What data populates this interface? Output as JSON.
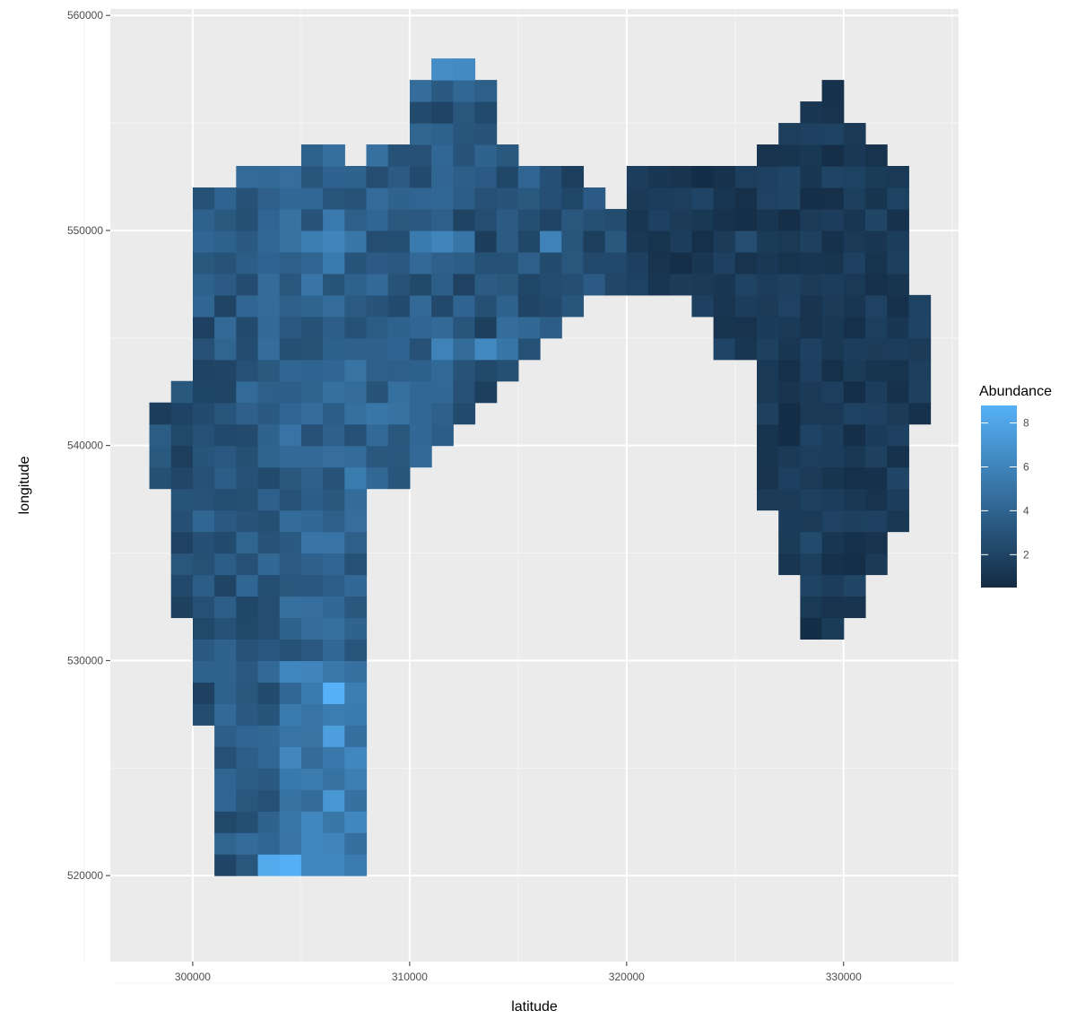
{
  "chart_data": {
    "type": "heatmap",
    "title": "",
    "xlabel": "latitude",
    "ylabel": "longitude",
    "xlim": [
      296200,
      335300
    ],
    "ylim": [
      516000,
      560300
    ],
    "x_ticks": [
      300000,
      310000,
      320000,
      330000
    ],
    "y_ticks": [
      520000,
      530000,
      540000,
      550000,
      560000
    ],
    "x_tick_labels": [
      "300000",
      "310000",
      "320000",
      "330000"
    ],
    "y_tick_labels": [
      "520000",
      "530000",
      "540000",
      "550000",
      "560000"
    ],
    "grid": true,
    "background": "#ebebeb",
    "legend": {
      "title": "Abundance",
      "position": "right",
      "range": [
        0.5,
        8.8
      ],
      "ticks": [
        2,
        4,
        6,
        8
      ],
      "tick_labels": [
        "2",
        "4",
        "6",
        "8"
      ],
      "low_color": "#132b43",
      "high_color": "#56b1f7"
    },
    "tile_size": 1000,
    "tiles": [
      {
        "x": 299000,
        "y": 538000,
        "value": 2.2
      },
      {
        "x": 300000,
        "y": 538000,
        "value": 2.8
      },
      {
        "x": 301000,
        "y": 538000,
        "value": 3.6
      },
      {
        "x": 302000,
        "y": 538000,
        "value": 2.9
      },
      {
        "x": 303000,
        "y": 538000,
        "value": 2.4
      },
      {
        "x": 304000,
        "y": 538000,
        "value": 3.2
      },
      {
        "x": 305000,
        "y": 538000,
        "value": 3.8
      },
      {
        "x": 306000,
        "y": 538000,
        "value": 3.0
      },
      {
        "x": 307000,
        "y": 538000,
        "value": 5.5
      },
      {
        "x": 308000,
        "y": 538000,
        "value": 4.2
      },
      {
        "x": 309000,
        "y": 538000,
        "value": 3.1
      },
      {
        "x": 298000,
        "y": 541000,
        "value": 1.6
      },
      {
        "x": 299000,
        "y": 541000,
        "value": 2.0
      },
      {
        "x": 300000,
        "y": 541000,
        "value": 2.5
      },
      {
        "x": 301000,
        "y": 541000,
        "value": 3.1
      },
      {
        "x": 302000,
        "y": 541000,
        "value": 3.8
      },
      {
        "x": 303000,
        "y": 541000,
        "value": 3.4
      },
      {
        "x": 304000,
        "y": 541000,
        "value": 4.1
      },
      {
        "x": 305000,
        "y": 541000,
        "value": 4.6
      },
      {
        "x": 306000,
        "y": 541000,
        "value": 3.6
      },
      {
        "x": 307000,
        "y": 541000,
        "value": 4.8
      },
      {
        "x": 308000,
        "y": 541000,
        "value": 5.2
      },
      {
        "x": 309000,
        "y": 541000,
        "value": 4.9
      },
      {
        "x": 310000,
        "y": 541000,
        "value": 4.2
      },
      {
        "x": 311000,
        "y": 541000,
        "value": 3.8
      },
      {
        "x": 311000,
        "y": 544000,
        "value": 5.9
      },
      {
        "x": 312000,
        "y": 544000,
        "value": 4.4
      },
      {
        "x": 313000,
        "y": 544000,
        "value": 6.3
      },
      {
        "x": 314000,
        "y": 544000,
        "value": 5.1
      },
      {
        "x": 302000,
        "y": 549000,
        "value": 3.4
      },
      {
        "x": 303000,
        "y": 549000,
        "value": 4.2
      },
      {
        "x": 304000,
        "y": 549000,
        "value": 4.9
      },
      {
        "x": 305000,
        "y": 549000,
        "value": 5.6
      },
      {
        "x": 306000,
        "y": 549000,
        "value": 6.1
      },
      {
        "x": 307000,
        "y": 549000,
        "value": 5.2
      },
      {
        "x": 310000,
        "y": 549000,
        "value": 5.4
      },
      {
        "x": 311000,
        "y": 549000,
        "value": 6.0
      },
      {
        "x": 312000,
        "y": 549000,
        "value": 5.1
      },
      {
        "x": 316000,
        "y": 549000,
        "value": 5.9
      },
      {
        "x": 310000,
        "y": 557000,
        "value": 6.8
      },
      {
        "x": 311000,
        "y": 557000,
        "value": 6.6
      },
      {
        "x": 312000,
        "y": 557000,
        "value": 6.4
      },
      {
        "x": 305000,
        "y": 528000,
        "value": 5.4
      },
      {
        "x": 306000,
        "y": 528000,
        "value": 8.8
      },
      {
        "x": 306000,
        "y": 526000,
        "value": 7.6
      },
      {
        "x": 306000,
        "y": 523000,
        "value": 7.1
      },
      {
        "x": 304000,
        "y": 520000,
        "value": 8.7
      },
      {
        "x": 303000,
        "y": 520000,
        "value": 8.4
      },
      {
        "x": 320000,
        "y": 551000,
        "value": 1.4
      },
      {
        "x": 321000,
        "y": 551000,
        "value": 1.6
      },
      {
        "x": 325000,
        "y": 549000,
        "value": 2.6
      },
      {
        "x": 328000,
        "y": 545000,
        "value": 1.0
      },
      {
        "x": 330000,
        "y": 545000,
        "value": 0.8
      },
      {
        "x": 332000,
        "y": 542000,
        "value": 0.9
      },
      {
        "x": 328000,
        "y": 540000,
        "value": 2.0
      },
      {
        "x": 329000,
        "y": 538000,
        "value": 1.1
      },
      {
        "x": 328000,
        "y": 535000,
        "value": 2.4
      },
      {
        "x": 329000,
        "y": 533000,
        "value": 1.6
      },
      {
        "x": 328000,
        "y": 531000,
        "value": 0.7
      }
    ],
    "region": {
      "left_columns": [
        {
          "x": 298000,
          "ymin": 538000,
          "ymax": 541000
        },
        {
          "x": 299000,
          "ymin": 532000,
          "ymax": 542000
        },
        {
          "x": 300000,
          "ymin": 527000,
          "ymax": 551000
        },
        {
          "x": 301000,
          "ymin": 520000,
          "ymax": 551000
        },
        {
          "x": 302000,
          "ymin": 520000,
          "ymax": 552000
        },
        {
          "x": 303000,
          "ymin": 520000,
          "ymax": 552000
        },
        {
          "x": 304000,
          "ymin": 520000,
          "ymax": 552000
        },
        {
          "x": 305000,
          "ymin": 520000,
          "ymax": 553000
        },
        {
          "x": 306000,
          "ymin": 520000,
          "ymax": 553000
        },
        {
          "x": 307000,
          "ymin": 520000,
          "ymax": 552000
        },
        {
          "x": 308000,
          "ymin": 538000,
          "ymax": 553000
        },
        {
          "x": 309000,
          "ymin": 538000,
          "ymax": 553000
        },
        {
          "x": 310000,
          "ymin": 539000,
          "ymax": 556000
        },
        {
          "x": 311000,
          "ymin": 540000,
          "ymax": 557000
        },
        {
          "x": 312000,
          "ymin": 541000,
          "ymax": 557000
        },
        {
          "x": 313000,
          "ymin": 542000,
          "ymax": 556000
        },
        {
          "x": 314000,
          "ymin": 543000,
          "ymax": 553000
        },
        {
          "x": 315000,
          "ymin": 544000,
          "ymax": 552000
        },
        {
          "x": 316000,
          "ymin": 545000,
          "ymax": 552000
        },
        {
          "x": 317000,
          "ymin": 546000,
          "ymax": 552000
        },
        {
          "x": 318000,
          "ymin": 547000,
          "ymax": 551000
        },
        {
          "x": 319000,
          "ymin": 547000,
          "ymax": 550000
        }
      ],
      "right_columns": [
        {
          "x": 320000,
          "ymin": 547000,
          "ymax": 552000
        },
        {
          "x": 321000,
          "ymin": 547000,
          "ymax": 552000
        },
        {
          "x": 322000,
          "ymin": 547000,
          "ymax": 552000
        },
        {
          "x": 323000,
          "ymin": 546000,
          "ymax": 552000
        },
        {
          "x": 324000,
          "ymin": 544000,
          "ymax": 552000
        },
        {
          "x": 325000,
          "ymin": 544000,
          "ymax": 552000
        },
        {
          "x": 326000,
          "ymin": 537000,
          "ymax": 553000
        },
        {
          "x": 327000,
          "ymin": 534000,
          "ymax": 554000
        },
        {
          "x": 328000,
          "ymin": 531000,
          "ymax": 555000
        },
        {
          "x": 329000,
          "ymin": 531000,
          "ymax": 556000
        },
        {
          "x": 330000,
          "ymin": 532000,
          "ymax": 554000
        },
        {
          "x": 331000,
          "ymin": 534000,
          "ymax": 553000
        },
        {
          "x": 332000,
          "ymin": 536000,
          "ymax": 552000
        },
        {
          "x": 333000,
          "ymin": 541000,
          "ymax": 546000
        }
      ]
    }
  }
}
